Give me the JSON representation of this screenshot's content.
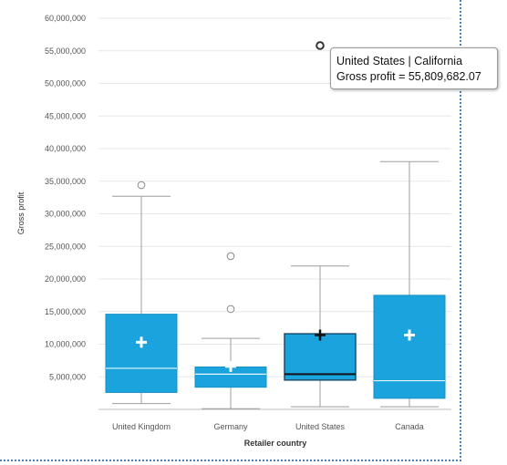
{
  "chart_data": {
    "type": "boxplot",
    "xlabel": "Retailer country",
    "ylabel": "Gross profit",
    "ylim": [
      0,
      60000000
    ],
    "yticks": [
      5000000,
      10000000,
      15000000,
      20000000,
      25000000,
      30000000,
      35000000,
      40000000,
      45000000,
      50000000,
      55000000,
      60000000
    ],
    "ytick_labels": [
      "5,000,000",
      "10,000,000",
      "15,000,000",
      "20,000,000",
      "25,000,000",
      "30,000,000",
      "35,000,000",
      "40,000,000",
      "45,000,000",
      "50,000,000",
      "55,000,000",
      "60,000,000"
    ],
    "grid": true,
    "box_color": "#1aa3dc",
    "categories": [
      "United Kingdom",
      "Germany",
      "United States",
      "Canada"
    ],
    "boxes": [
      {
        "category": "United Kingdom",
        "whisker_low": 900000,
        "q1": 2600000,
        "median": 6300000,
        "q3": 14600000,
        "whisker_high": 32700000,
        "mean": 10300000,
        "outliers": [
          34400000
        ]
      },
      {
        "category": "Germany",
        "whisker_low": 100000,
        "q1": 3400000,
        "median": 5400000,
        "q3": 6500000,
        "whisker_high": 10900000,
        "mean": 6600000,
        "outliers": [
          15400000,
          23500000
        ]
      },
      {
        "category": "United States",
        "whisker_low": 400000,
        "q1": 4500000,
        "median": 5400000,
        "q3": 11600000,
        "whisker_high": 22000000,
        "mean": 11400000,
        "outliers": [
          55809682.07
        ],
        "highlighted": true
      },
      {
        "category": "Canada",
        "whisker_low": 400000,
        "q1": 1700000,
        "median": 4400000,
        "q3": 17500000,
        "whisker_high": 38000000,
        "mean": 11400000,
        "outliers": []
      }
    ],
    "tooltip": {
      "title": "United States | California",
      "text": "Gross profit = 55,809,682.07"
    }
  }
}
